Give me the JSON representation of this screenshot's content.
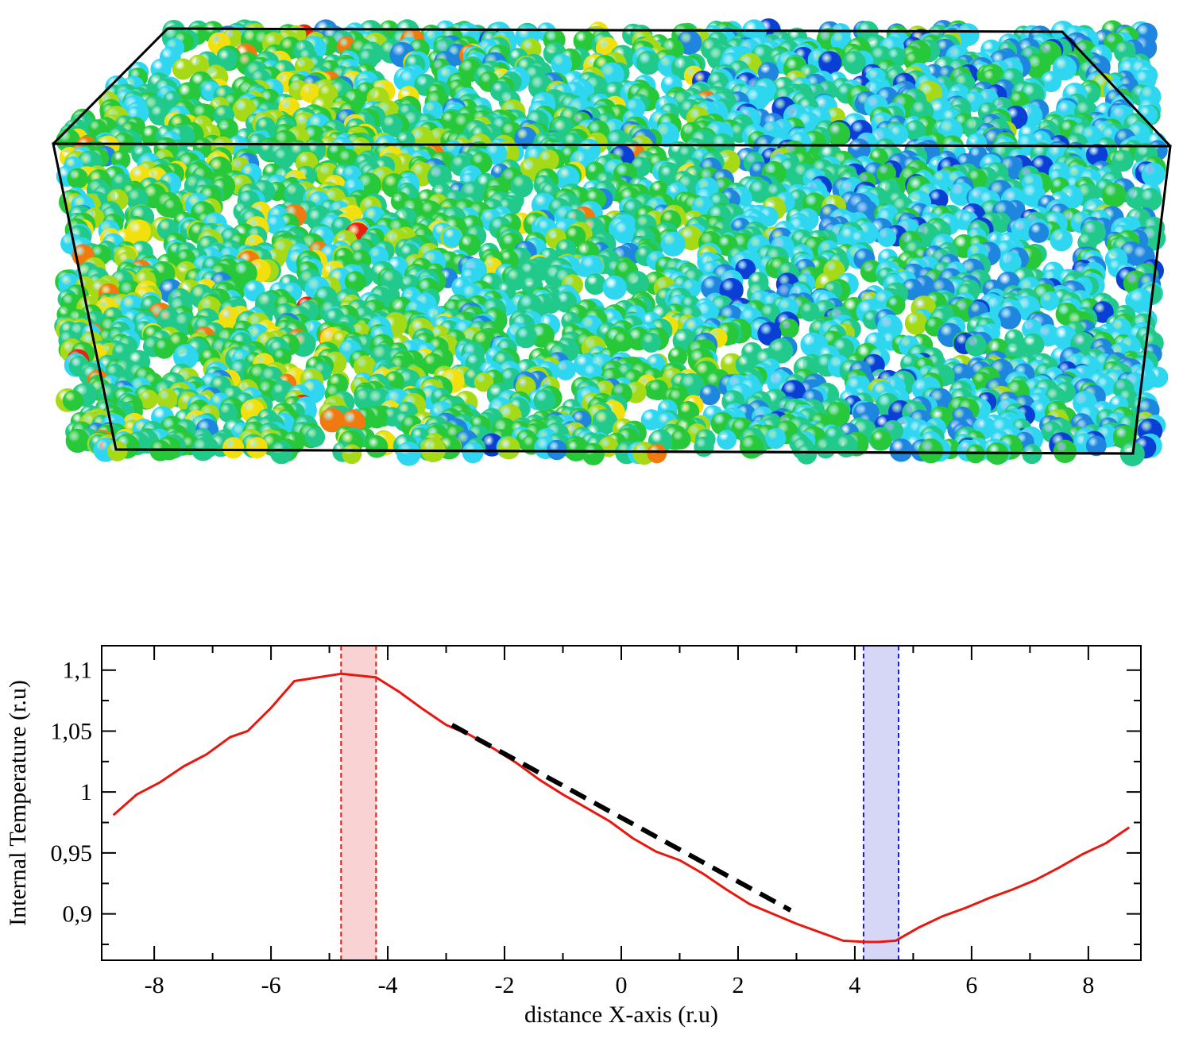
{
  "chart_data": [
    {
      "type": "scatter",
      "subtype": "3d-particle-snapshot",
      "description_visible": "simulation box of spherical particles colored by temperature; warmer (yellow/red) particles on the left, cooler (blue) particles on the right",
      "palette": [
        "#0a3fd6",
        "#1f86e0",
        "#2fd6f0",
        "#21c98a",
        "#27c83a",
        "#a6d916",
        "#f2e00e",
        "#f07a10",
        "#e8220c"
      ],
      "box_color": "#000000"
    },
    {
      "type": "line",
      "title": "",
      "xlabel": "distance X-axis (r.u)",
      "ylabel": "Internal Temperature (r.u)",
      "xlim": [
        -8.9,
        8.9
      ],
      "ylim": [
        0.862,
        1.12
      ],
      "x_ticks": [
        -8,
        -6,
        -4,
        -2,
        0,
        2,
        4,
        6,
        8
      ],
      "x_tick_labels": [
        "-8",
        "-6",
        "-4",
        "-2",
        "0",
        "2",
        "4",
        "6",
        "8"
      ],
      "y_ticks": [
        0.9,
        0.95,
        1.0,
        1.05,
        1.1
      ],
      "y_tick_labels": [
        "0,9",
        "0,95",
        "1",
        "1,05",
        "1,1"
      ],
      "grid": false,
      "series": [
        {
          "color": "#e8170f",
          "style": "solid",
          "x": [
            -8.7,
            -8.3,
            -7.9,
            -7.5,
            -7.1,
            -6.7,
            -6.4,
            -6.0,
            -5.6,
            -5.2,
            -4.8,
            -4.2,
            -3.8,
            -3.4,
            -3.0,
            -2.6,
            -2.2,
            -1.8,
            -1.4,
            -1.0,
            -0.6,
            -0.2,
            0.2,
            0.6,
            1.0,
            1.4,
            1.8,
            2.2,
            2.6,
            3.0,
            3.4,
            3.8,
            4.2,
            4.4,
            4.7,
            5.1,
            5.5,
            5.9,
            6.3,
            6.7,
            7.1,
            7.5,
            7.9,
            8.3,
            8.7
          ],
          "y": [
            0.981,
            0.998,
            1.008,
            1.021,
            1.031,
            1.045,
            1.05,
            1.069,
            1.091,
            1.094,
            1.097,
            1.094,
            1.082,
            1.068,
            1.055,
            1.047,
            1.036,
            1.024,
            1.01,
            0.998,
            0.987,
            0.976,
            0.962,
            0.951,
            0.944,
            0.933,
            0.92,
            0.908,
            0.9,
            0.892,
            0.885,
            0.878,
            0.877,
            0.877,
            0.878,
            0.889,
            0.898,
            0.905,
            0.913,
            0.92,
            0.928,
            0.938,
            0.949,
            0.958,
            0.971
          ]
        },
        {
          "color": "#000000",
          "style": "dashed",
          "x": [
            -2.9,
            2.9
          ],
          "y": [
            1.055,
            0.903
          ]
        }
      ],
      "bands": [
        {
          "x0": -4.8,
          "x1": -4.2,
          "fill": "#f9d3d3",
          "edge": "#e8170f"
        },
        {
          "x0": 4.15,
          "x1": 4.75,
          "fill": "#d6d6f7",
          "edge": "#1a1ad6"
        }
      ]
    }
  ]
}
